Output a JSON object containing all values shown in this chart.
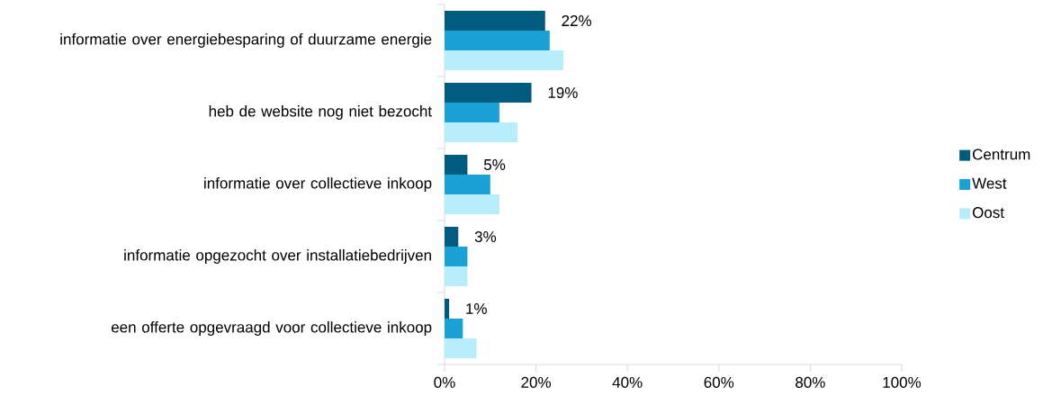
{
  "chart_data": {
    "type": "bar",
    "orientation": "horizontal",
    "categories": [
      "informatie over energiebesparing of duurzame energie",
      "heb de website nog niet bezocht",
      "informatie over collectieve inkoop",
      "informatie opgezocht over installatiebedrijven",
      "een offerte opgevraagd voor collectieve inkoop"
    ],
    "series": [
      {
        "name": "Centrum",
        "color": "#005b7f",
        "values": [
          22,
          19,
          5,
          3,
          1
        ],
        "value_labels": [
          "22%",
          "19%",
          "5%",
          "3%",
          "1%"
        ]
      },
      {
        "name": "West",
        "color": "#1ba1d4",
        "values": [
          23,
          12,
          10,
          5,
          4
        ]
      },
      {
        "name": "Oost",
        "color": "#b7ecfb",
        "values": [
          26,
          16,
          12,
          5,
          7
        ]
      }
    ],
    "xlim": [
      0,
      100
    ],
    "xticks": [
      {
        "value": 0,
        "label": "0%"
      },
      {
        "value": 20,
        "label": "20%"
      },
      {
        "value": 40,
        "label": "40%"
      },
      {
        "value": 60,
        "label": "60%"
      },
      {
        "value": 80,
        "label": "80%"
      },
      {
        "value": 100,
        "label": "100%"
      }
    ],
    "grid": false,
    "legend": "right"
  }
}
